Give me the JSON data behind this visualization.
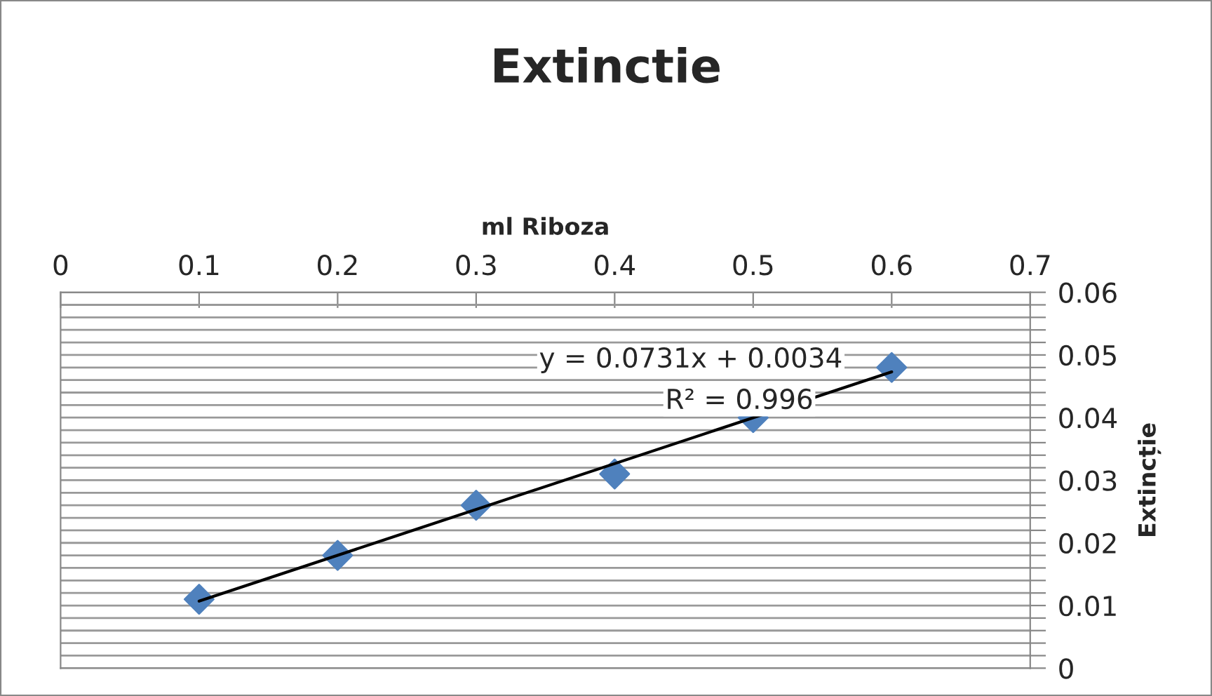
{
  "chart_data": {
    "type": "scatter",
    "title": "Extinctie",
    "xlabel": "ml Riboza",
    "ylabel": "Extincție",
    "x": [
      0.1,
      0.2,
      0.3,
      0.4,
      0.5,
      0.6
    ],
    "series": [
      {
        "type": "scatter",
        "color": "#4f81bd",
        "marker": "diamond",
        "values": [
          0.011,
          0.018,
          0.026,
          0.031,
          0.04,
          0.048
        ]
      },
      {
        "type": "line",
        "color": "#000000",
        "marker": "none",
        "line_style": "solid",
        "x": [
          0.1,
          0.6
        ],
        "values": [
          0.0107,
          0.0473
        ]
      }
    ],
    "annotations": [
      "y = 0.0731x + 0.0034",
      "R² = 0.996"
    ],
    "xlim": [
      0,
      0.7
    ],
    "xticks": [
      0,
      0.1,
      0.2,
      0.3,
      0.4,
      0.5,
      0.6,
      0.7
    ],
    "ylim": [
      0,
      0.06
    ],
    "yticks": [
      0,
      {
        "value": 0.002,
        "label": null
      },
      {
        "value": 0.004,
        "label": null
      },
      {
        "value": 0.006,
        "label": null
      },
      {
        "value": 0.008,
        "label": null
      },
      0.01,
      {
        "value": 0.012,
        "label": null
      },
      {
        "value": 0.014,
        "label": null
      },
      {
        "value": 0.016,
        "label": null
      },
      {
        "value": 0.018,
        "label": null
      },
      0.02,
      {
        "value": 0.022,
        "label": null
      },
      {
        "value": 0.024,
        "label": null
      },
      {
        "value": 0.026,
        "label": null
      },
      {
        "value": 0.028,
        "label": null
      },
      0.03,
      {
        "value": 0.032,
        "label": null
      },
      {
        "value": 0.034,
        "label": null
      },
      {
        "value": 0.036,
        "label": null
      },
      {
        "value": 0.038,
        "label": null
      },
      0.04,
      {
        "value": 0.042,
        "label": null
      },
      {
        "value": 0.044,
        "label": null
      },
      {
        "value": 0.046,
        "label": null
      },
      {
        "value": 0.048,
        "label": null
      },
      0.05,
      {
        "value": 0.052,
        "label": null
      },
      {
        "value": 0.054,
        "label": null
      },
      {
        "value": 0.056,
        "label": null
      },
      {
        "value": 0.058,
        "label": null
      },
      0.06
    ],
    "grid": "y",
    "legend": false
  }
}
